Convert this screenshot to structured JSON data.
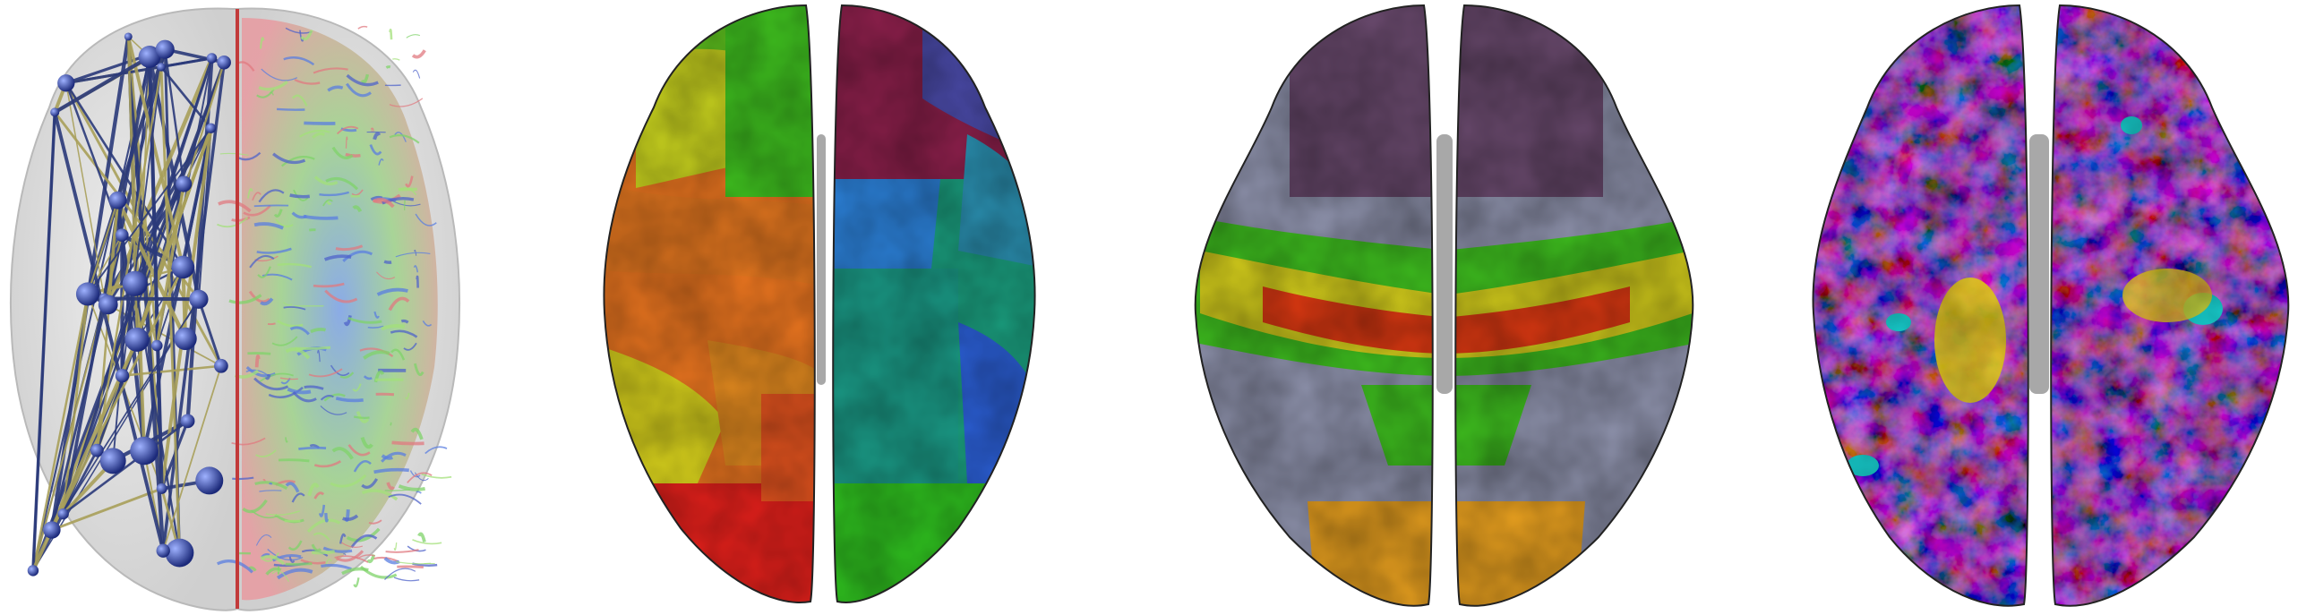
{
  "figure": {
    "panels": [
      {
        "id": "connectome-tractography",
        "description_icon": "brain-network-and-fiber-tracts-icon"
      },
      {
        "id": "parcellation-map",
        "description_icon": "brain-parcellation-icon"
      },
      {
        "id": "activation-map",
        "description_icon": "brain-activation-icon"
      },
      {
        "id": "noise-map",
        "description_icon": "brain-noise-map-icon"
      }
    ],
    "colors": {
      "background": "#ffffff",
      "network_edges_dark": "#2b3a7a",
      "network_edges_light": "#a9a05a",
      "parcel_red": "#e3201b",
      "parcel_orange": "#e8741f",
      "parcel_yellow": "#d9d21c",
      "parcel_green": "#3fc11f",
      "parcel_teal": "#1a9e7e",
      "parcel_blue": "#2b5fd6",
      "parcel_purple": "#4a4aa8",
      "parcel_maroon": "#8a1f4a",
      "cortex_gray": "#8f93ad",
      "activation_red": "#e23a12",
      "activation_yellow": "#f0d61a",
      "noise_purple": "#3b1a7a",
      "noise_red": "#b0241a",
      "noise_cyan": "#18d6d6"
    }
  }
}
